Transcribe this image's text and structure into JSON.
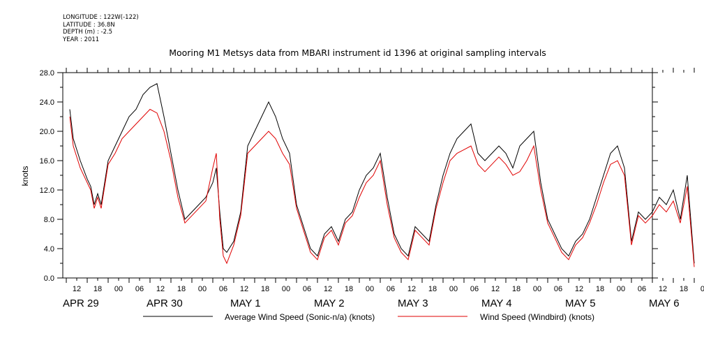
{
  "meta": {
    "longitude": "LONGITUDE : 122W(-122)",
    "latitude": "LATITUDE : 36.8N",
    "depth": "DEPTH (m) : -2.5",
    "year": "YEAR : 2011"
  },
  "chart_data": {
    "type": "line",
    "title": "Mooring M1 Metsys data from MBARI instrument id 1396 at original sampling intervals",
    "ylabel": "knots",
    "ylim": [
      0,
      28
    ],
    "y_ticks": [
      "0.0",
      "4.0",
      "8.0",
      "12.0",
      "16.0",
      "20.0",
      "24.0",
      "28.0"
    ],
    "xlim_hours": [
      0,
      180
    ],
    "hour_tick_labels": [
      "12",
      "18",
      "00",
      "06",
      "12",
      "18",
      "00",
      "06",
      "12",
      "18",
      "00",
      "06",
      "12",
      "18",
      "00",
      "06",
      "12",
      "18",
      "00",
      "06",
      "12",
      "18",
      "00",
      "06",
      "12",
      "18",
      "00",
      "06",
      "12",
      "18",
      "00",
      "06"
    ],
    "day_labels": [
      "APR 29",
      "APR 30",
      "MAY  1",
      "MAY  2",
      "MAY  3",
      "MAY  4",
      "MAY  5",
      "MAY  6"
    ],
    "series": [
      {
        "name": "Average Wind Speed (Sonic-n/a) (knots)",
        "color": "#000000",
        "points": [
          [
            1,
            23
          ],
          [
            2,
            19
          ],
          [
            4,
            16
          ],
          [
            6,
            13.5
          ],
          [
            7,
            12.5
          ],
          [
            8,
            10
          ],
          [
            9,
            11.5
          ],
          [
            10,
            10
          ],
          [
            12,
            16
          ],
          [
            14,
            18
          ],
          [
            16,
            20
          ],
          [
            18,
            22
          ],
          [
            20,
            23
          ],
          [
            22,
            25
          ],
          [
            24,
            26
          ],
          [
            26,
            26.5
          ],
          [
            28,
            22
          ],
          [
            30,
            17
          ],
          [
            32,
            12
          ],
          [
            34,
            8
          ],
          [
            36,
            9
          ],
          [
            38,
            10
          ],
          [
            40,
            11
          ],
          [
            42,
            13
          ],
          [
            43,
            15
          ],
          [
            44,
            9
          ],
          [
            45,
            4
          ],
          [
            46,
            3.5
          ],
          [
            48,
            5
          ],
          [
            50,
            9
          ],
          [
            52,
            18
          ],
          [
            54,
            20
          ],
          [
            56,
            22
          ],
          [
            58,
            24
          ],
          [
            60,
            22
          ],
          [
            62,
            19
          ],
          [
            64,
            17
          ],
          [
            66,
            10
          ],
          [
            68,
            7
          ],
          [
            70,
            4
          ],
          [
            72,
            3
          ],
          [
            74,
            6
          ],
          [
            76,
            7
          ],
          [
            78,
            5
          ],
          [
            80,
            8
          ],
          [
            82,
            9
          ],
          [
            84,
            12
          ],
          [
            86,
            14
          ],
          [
            88,
            15
          ],
          [
            90,
            17
          ],
          [
            92,
            11
          ],
          [
            94,
            6
          ],
          [
            96,
            4
          ],
          [
            98,
            3
          ],
          [
            100,
            7
          ],
          [
            102,
            6
          ],
          [
            104,
            5
          ],
          [
            106,
            10
          ],
          [
            108,
            14
          ],
          [
            110,
            17
          ],
          [
            112,
            19
          ],
          [
            114,
            20
          ],
          [
            116,
            21
          ],
          [
            118,
            17
          ],
          [
            120,
            16
          ],
          [
            122,
            17
          ],
          [
            124,
            18
          ],
          [
            126,
            17
          ],
          [
            128,
            15
          ],
          [
            130,
            18
          ],
          [
            132,
            19
          ],
          [
            134,
            20
          ],
          [
            136,
            13
          ],
          [
            138,
            8
          ],
          [
            140,
            6
          ],
          [
            142,
            4
          ],
          [
            144,
            3
          ],
          [
            146,
            5
          ],
          [
            148,
            6
          ],
          [
            150,
            8
          ],
          [
            152,
            11
          ],
          [
            154,
            14
          ],
          [
            156,
            17
          ],
          [
            158,
            18
          ],
          [
            160,
            15
          ],
          [
            162,
            5
          ],
          [
            164,
            9
          ],
          [
            166,
            8
          ],
          [
            168,
            9
          ],
          [
            170,
            11
          ],
          [
            172,
            10
          ],
          [
            174,
            12
          ],
          [
            176,
            8
          ],
          [
            178,
            14
          ],
          [
            180,
            2
          ]
        ]
      },
      {
        "name": "Wind Speed (Windbird) (knots)",
        "color": "#e00000",
        "points": [
          [
            1,
            22
          ],
          [
            2,
            18
          ],
          [
            4,
            15
          ],
          [
            6,
            13
          ],
          [
            7,
            12
          ],
          [
            8,
            9.5
          ],
          [
            9,
            11
          ],
          [
            10,
            9.5
          ],
          [
            12,
            15.5
          ],
          [
            14,
            17
          ],
          [
            16,
            19
          ],
          [
            18,
            20
          ],
          [
            20,
            21
          ],
          [
            22,
            22
          ],
          [
            24,
            23
          ],
          [
            26,
            22.5
          ],
          [
            28,
            20
          ],
          [
            30,
            16
          ],
          [
            32,
            11
          ],
          [
            34,
            7.5
          ],
          [
            36,
            8.5
          ],
          [
            38,
            9.5
          ],
          [
            40,
            10.5
          ],
          [
            42,
            15
          ],
          [
            43,
            17
          ],
          [
            44,
            8
          ],
          [
            45,
            3
          ],
          [
            46,
            2
          ],
          [
            48,
            4.5
          ],
          [
            50,
            8.5
          ],
          [
            52,
            17
          ],
          [
            54,
            18
          ],
          [
            56,
            19
          ],
          [
            58,
            20
          ],
          [
            60,
            19
          ],
          [
            62,
            17
          ],
          [
            64,
            15.5
          ],
          [
            66,
            9.5
          ],
          [
            68,
            6.5
          ],
          [
            70,
            3.5
          ],
          [
            72,
            2.5
          ],
          [
            74,
            5.5
          ],
          [
            76,
            6.5
          ],
          [
            78,
            4.5
          ],
          [
            80,
            7.5
          ],
          [
            82,
            8.5
          ],
          [
            84,
            11
          ],
          [
            86,
            13
          ],
          [
            88,
            14
          ],
          [
            90,
            16
          ],
          [
            92,
            10
          ],
          [
            94,
            5.5
          ],
          [
            96,
            3.5
          ],
          [
            98,
            2.5
          ],
          [
            100,
            6.5
          ],
          [
            102,
            5.5
          ],
          [
            104,
            4.5
          ],
          [
            106,
            9.5
          ],
          [
            108,
            13
          ],
          [
            110,
            16
          ],
          [
            112,
            17
          ],
          [
            114,
            17.5
          ],
          [
            116,
            18
          ],
          [
            118,
            15.5
          ],
          [
            120,
            14.5
          ],
          [
            122,
            15.5
          ],
          [
            124,
            16.5
          ],
          [
            126,
            15.5
          ],
          [
            128,
            14
          ],
          [
            130,
            14.5
          ],
          [
            132,
            16
          ],
          [
            134,
            18
          ],
          [
            136,
            12
          ],
          [
            138,
            7.5
          ],
          [
            140,
            5.5
          ],
          [
            142,
            3.5
          ],
          [
            144,
            2.5
          ],
          [
            146,
            4.5
          ],
          [
            148,
            5.5
          ],
          [
            150,
            7.5
          ],
          [
            152,
            10
          ],
          [
            154,
            13
          ],
          [
            156,
            15.5
          ],
          [
            158,
            16
          ],
          [
            160,
            14
          ],
          [
            162,
            4.5
          ],
          [
            164,
            8.5
          ],
          [
            166,
            7.5
          ],
          [
            168,
            8.5
          ],
          [
            170,
            10
          ],
          [
            172,
            9
          ],
          [
            174,
            10.5
          ],
          [
            176,
            7.5
          ],
          [
            178,
            12.5
          ],
          [
            180,
            1.5
          ]
        ]
      }
    ]
  }
}
